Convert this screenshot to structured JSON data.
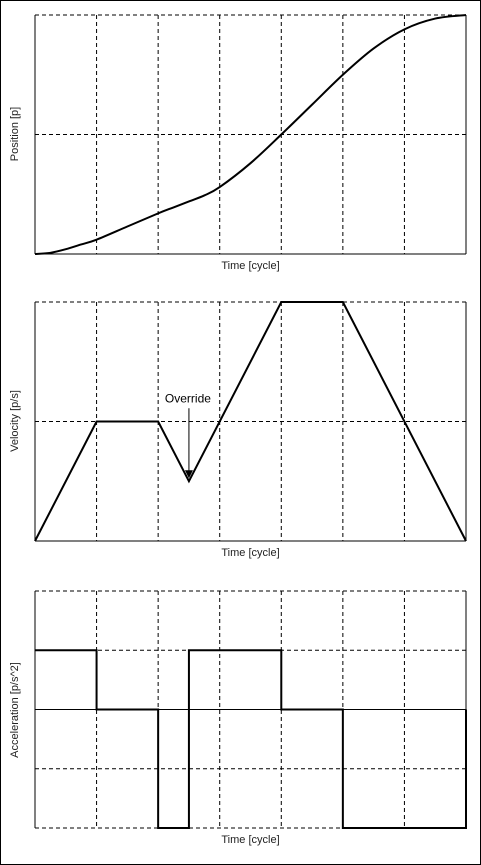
{
  "chart_data": [
    {
      "type": "line",
      "xlabel": "Time [cycle]",
      "ylabel": "Position [p]",
      "xlim": [
        0,
        7
      ],
      "ylim": [
        0,
        2
      ],
      "grid": true,
      "x": [
        0,
        0.25,
        0.5,
        0.75,
        1,
        1.5,
        2,
        2.25,
        2.5,
        2.75,
        3,
        3.5,
        4,
        4.5,
        5,
        5.5,
        6,
        6.5,
        7
      ],
      "y": [
        0,
        0.01,
        0.04,
        0.08,
        0.12,
        0.23,
        0.34,
        0.39,
        0.44,
        0.49,
        0.56,
        0.76,
        1.0,
        1.25,
        1.5,
        1.72,
        1.88,
        1.97,
        2.0
      ]
    },
    {
      "type": "line",
      "xlabel": "Time [cycle]",
      "ylabel": "Velocity [p/s]",
      "xlim": [
        0,
        7
      ],
      "ylim": [
        0,
        2
      ],
      "grid": true,
      "x": [
        0,
        1,
        2,
        2.5,
        4,
        5,
        7
      ],
      "y": [
        0,
        1,
        1,
        0.5,
        2,
        2,
        0
      ],
      "annotations": [
        {
          "text": "Override",
          "x": 2.5,
          "y": 0.5
        }
      ]
    },
    {
      "type": "line",
      "xlabel": "Time [cycle]",
      "ylabel": "Acceleration [p/s^2]",
      "xlim": [
        0,
        7
      ],
      "ylim": [
        -2,
        2
      ],
      "grid": true,
      "x": [
        0,
        1,
        1,
        2,
        2,
        2.5,
        2.5,
        4,
        4,
        5,
        5,
        7,
        7
      ],
      "y": [
        1,
        1,
        0,
        0,
        -2,
        -2,
        1,
        1,
        0,
        0,
        -2,
        -2,
        0
      ]
    }
  ]
}
